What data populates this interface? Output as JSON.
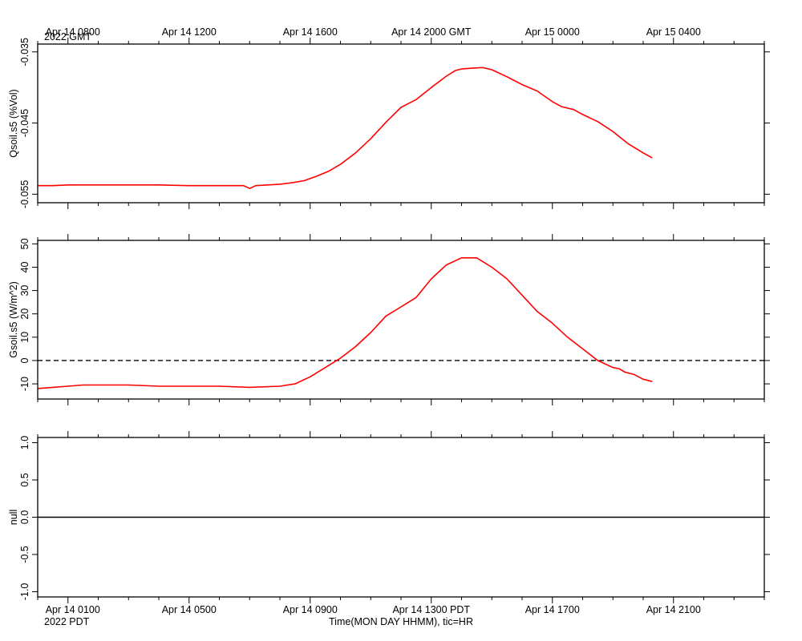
{
  "top_axis": {
    "ticks": [
      {
        "t": 0,
        "label": "Apr 14 0800"
      },
      {
        "t": 4,
        "label": "Apr 14 1200"
      },
      {
        "t": 8,
        "label": "Apr 14 1600"
      },
      {
        "t": 12,
        "label": "Apr 14 2000 GMT"
      },
      {
        "t": 16,
        "label": "Apr 15 0000"
      },
      {
        "t": 20,
        "label": "Apr 15 0400"
      }
    ],
    "year_label": "2022 GMT"
  },
  "bottom_axis": {
    "ticks": [
      {
        "t": 0,
        "label": "Apr 14 0100"
      },
      {
        "t": 4,
        "label": "Apr 14 0500"
      },
      {
        "t": 8,
        "label": "Apr 14 0900"
      },
      {
        "t": 12,
        "label": "Apr 14 1300 PDT"
      },
      {
        "t": 16,
        "label": "Apr 14 1700"
      },
      {
        "t": 20,
        "label": "Apr 14 2100"
      }
    ],
    "year_label": "2022 PDT",
    "xlabel": "Time(MON DAY HHMM), tic=HR"
  },
  "chart_data": [
    {
      "type": "line",
      "ylabel": "Qsoil.s5 (%Vol)",
      "yticks": [
        -0.055,
        -0.045,
        -0.035
      ],
      "ytick_labels": [
        "-0.055",
        "-0.045",
        "-0.035"
      ],
      "ylim": [
        -0.0562,
        -0.0339
      ],
      "xlim": [
        -1,
        23
      ],
      "x_unit": "hours after Apr 14 0100 PDT",
      "grid": false,
      "series": [
        {
          "color": "#ff0000",
          "x": [
            -1,
            -0.5,
            0,
            0.5,
            1,
            2,
            3,
            4,
            5,
            5.8,
            6.0,
            6.2,
            6.6,
            7,
            7.4,
            7.8,
            8.2,
            8.6,
            9,
            9.5,
            10,
            10.5,
            11,
            11.5,
            12,
            12.5,
            12.8,
            13,
            13.3,
            13.7,
            14,
            14.5,
            15,
            15.5,
            16,
            16.3,
            16.7,
            17,
            17.5,
            18,
            18.5,
            19,
            19.3
          ],
          "y": [
            -0.0538,
            -0.0538,
            -0.0537,
            -0.0537,
            -0.0537,
            -0.0537,
            -0.0537,
            -0.0538,
            -0.0538,
            -0.0538,
            -0.0542,
            -0.0538,
            -0.0537,
            -0.0536,
            -0.0534,
            -0.0531,
            -0.0525,
            -0.0518,
            -0.0508,
            -0.0492,
            -0.0472,
            -0.0449,
            -0.0428,
            -0.0417,
            -0.04,
            -0.0384,
            -0.0376,
            -0.0374,
            -0.0373,
            -0.0372,
            -0.0375,
            -0.0385,
            -0.0396,
            -0.0405,
            -0.042,
            -0.0427,
            -0.0431,
            -0.0438,
            -0.0448,
            -0.0462,
            -0.0479,
            -0.0492,
            -0.0499
          ]
        }
      ]
    },
    {
      "type": "line",
      "ylabel": "Gsoil.s5 (W/m^2)",
      "yticks": [
        -10,
        0,
        10,
        20,
        30,
        40,
        50
      ],
      "ytick_labels": [
        "-10",
        "0",
        "10",
        "20",
        "30",
        "40",
        "50"
      ],
      "ylim": [
        -16.5,
        51.5
      ],
      "xlim": [
        -1,
        23
      ],
      "x_unit": "hours after Apr 14 0100 PDT",
      "grid": false,
      "reference_line": {
        "y": 0,
        "style": "dashed",
        "color": "#000000"
      },
      "series": [
        {
          "color": "#ff0000",
          "x": [
            -1,
            -0.5,
            0,
            0.5,
            1,
            1.5,
            2,
            3,
            4,
            5,
            6,
            7,
            7.5,
            8,
            8.5,
            9,
            9.5,
            10,
            10.5,
            11,
            11.5,
            12,
            12.5,
            13,
            13.5,
            14,
            14.5,
            15,
            15.5,
            16,
            16.5,
            17,
            17.5,
            18,
            18.2,
            18.4,
            18.7,
            19,
            19.3
          ],
          "y": [
            -12,
            -11.5,
            -11,
            -10.5,
            -10.5,
            -10.5,
            -10.5,
            -11,
            -11,
            -11,
            -11.5,
            -11,
            -10,
            -7,
            -3,
            1,
            6,
            12,
            19,
            23,
            27,
            35,
            41,
            44,
            44,
            40,
            35,
            28,
            21,
            16,
            10,
            5,
            0,
            -3,
            -3.5,
            -5,
            -6,
            -8,
            -9
          ]
        }
      ]
    },
    {
      "type": "line",
      "ylabel": "null",
      "yticks": [
        -1.0,
        -0.5,
        0.0,
        0.5,
        1.0
      ],
      "ytick_labels": [
        "-1.0",
        "-0.5",
        "0.0",
        "0.5",
        "1.0"
      ],
      "ylim": [
        -1.07,
        1.07
      ],
      "xlim": [
        -1,
        23
      ],
      "x_unit": "hours after Apr 14 0100 PDT",
      "grid": false,
      "reference_line": {
        "y": 0,
        "style": "solid",
        "color": "#000000"
      },
      "series": []
    }
  ]
}
